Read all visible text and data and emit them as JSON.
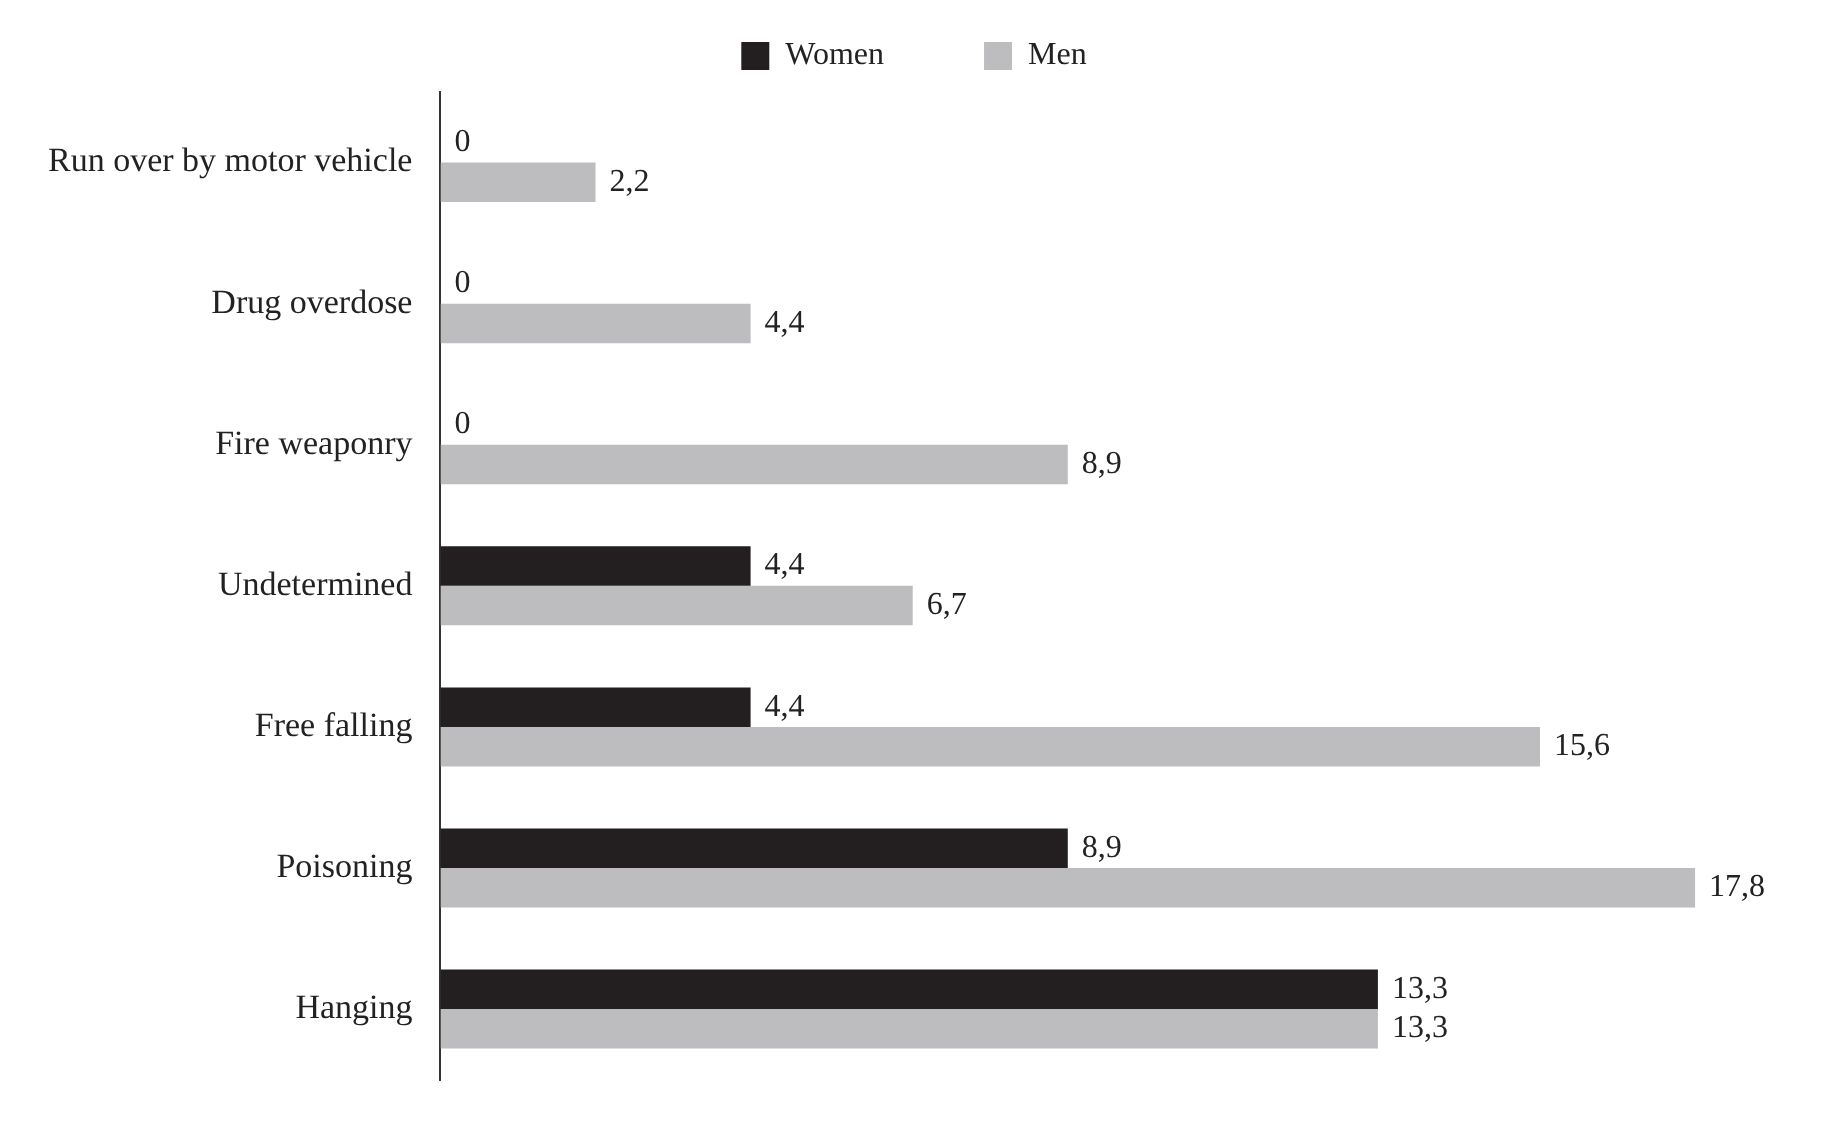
{
  "chart_data": {
    "type": "bar",
    "orientation": "horizontal",
    "legend": "top",
    "tick_labels": "y",
    "categories": [
      "Run over by motor vehicle",
      "Drug overdose",
      "Fire weaponry",
      "Undetermined",
      "Free falling",
      "Poisoning",
      "Hanging"
    ],
    "series": [
      {
        "name": "Women",
        "color": "#231f20",
        "values": [
          0,
          0,
          0,
          4.4,
          4.4,
          8.9,
          13.3
        ],
        "value_labels": [
          "0",
          "0",
          "0",
          "4,4",
          "4,4",
          "8,9",
          "13,3"
        ]
      },
      {
        "name": "Men",
        "color": "#bdbdc0",
        "values": [
          2.2,
          4.4,
          8.9,
          6.7,
          15.6,
          17.8,
          13.3
        ],
        "value_labels": [
          "2,2",
          "4,4",
          "8,9",
          "6,7",
          "15,6",
          "17,8",
          "13,3"
        ]
      }
    ]
  }
}
